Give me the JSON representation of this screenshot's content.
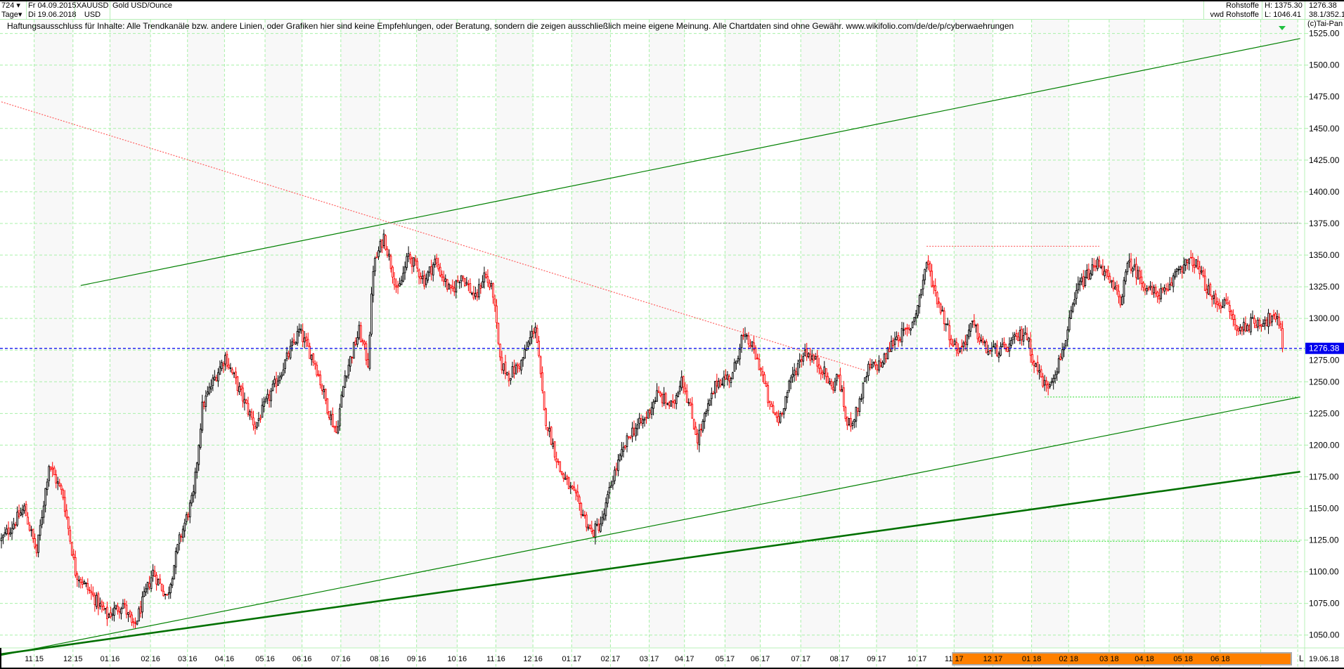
{
  "header": {
    "bar_count": "724",
    "interval": "Tage",
    "date_from": "Fr 04.09.2015",
    "date_to": "Di 19.06.2018",
    "symbol": "XAUUSD",
    "currency": "USD",
    "instrument_name": "Gold USD/Ounce",
    "category": "Rohstoffe",
    "source": "vwd Rohstoffe",
    "high": "H: 1375.30",
    "low": "L: 1046.41",
    "last_price": "1276.38",
    "change": "38.1/352.1",
    "copyright": "(c)Tai-Pan"
  },
  "disclaimer": "Haftungsausschluss für Inhalte: Alle Trendkanäle bzw. andere Linien, oder Grafiken hier sind keine Empfehlungen, oder Beratung, sondern die zeigen ausschließlich meine eigene Meinung. Alle Chartdaten sind ohne Gewähr.  www.wikifolio.com/de/de/p/cyberwaehrungen",
  "colors": {
    "up": "#000000",
    "down": "#ff0000",
    "grid": "#a8f0a8",
    "channel": "#008000",
    "last_price": "#0000ee",
    "resistance": "#ff6060",
    "axis_highlight": "#ff8000"
  },
  "chart_data": {
    "type": "candlestick",
    "title": "Gold USD/Ounce",
    "interval": "daily",
    "ylim": [
      1040,
      1530
    ],
    "yticks": [
      1050,
      1075,
      1100,
      1125,
      1150,
      1175,
      1200,
      1225,
      1250,
      1275,
      1300,
      1325,
      1350,
      1375,
      1400,
      1425,
      1450,
      1475,
      1500,
      1525
    ],
    "ytick_labels": [
      "1050.00",
      "1075.00",
      "1100.00",
      "1125.00",
      "1150.00",
      "1175.00",
      "1200.00",
      "1225.00",
      "1250.00",
      "1275.00",
      "1300.00",
      "1325.00",
      "1350.00",
      "1375.00",
      "1400.00",
      "1425.00",
      "1450.00",
      "1475.00",
      "1500.00",
      "1525.00"
    ],
    "xtick_labels": [
      "11 15",
      "12 15",
      "01 16",
      "02 16",
      "03 16",
      "04 16",
      "05 16",
      "06 16",
      "07 16",
      "08 16",
      "09 16",
      "10 16",
      "11 16",
      "12 16",
      "01 17",
      "02 17",
      "03 17",
      "04 17",
      "05 17",
      "06 17",
      "07 17",
      "08 17",
      "09 17",
      "10 17",
      "11 17",
      "12 17",
      "01 18",
      "02 18",
      "03 18",
      "04 18",
      "05 18",
      "06 18"
    ],
    "x_end_label": "19.06.18",
    "x_scale_marker": "L",
    "grid": true,
    "approx_close": [
      [
        "2015-09-04",
        1125
      ],
      [
        "2015-09-23",
        1150
      ],
      [
        "2015-10-02",
        1115
      ],
      [
        "2015-10-13",
        1185
      ],
      [
        "2015-10-23",
        1160
      ],
      [
        "2015-11-03",
        1100
      ],
      [
        "2015-11-27",
        1065
      ],
      [
        "2015-12-10",
        1075
      ],
      [
        "2015-12-18",
        1055
      ],
      [
        "2016-01-04",
        1100
      ],
      [
        "2016-01-14",
        1080
      ],
      [
        "2016-01-25",
        1125
      ],
      [
        "2016-02-04",
        1160
      ],
      [
        "2016-02-11",
        1230
      ],
      [
        "2016-02-19",
        1250
      ],
      [
        "2016-03-01",
        1270
      ],
      [
        "2016-03-14",
        1240
      ],
      [
        "2016-03-24",
        1215
      ],
      [
        "2016-04-11",
        1250
      ],
      [
        "2016-04-28",
        1290
      ],
      [
        "2016-05-11",
        1265
      ],
      [
        "2016-05-20",
        1230
      ],
      [
        "2016-05-27",
        1210
      ],
      [
        "2016-06-03",
        1255
      ],
      [
        "2016-06-15",
        1290
      ],
      [
        "2016-06-22",
        1265
      ],
      [
        "2016-06-27",
        1340
      ],
      [
        "2016-07-05",
        1365
      ],
      [
        "2016-07-15",
        1320
      ],
      [
        "2016-07-25",
        1350
      ],
      [
        "2016-08-05",
        1330
      ],
      [
        "2016-08-15",
        1345
      ],
      [
        "2016-08-26",
        1320
      ],
      [
        "2016-09-05",
        1335
      ],
      [
        "2016-09-15",
        1315
      ],
      [
        "2016-09-22",
        1335
      ],
      [
        "2016-09-29",
        1320
      ],
      [
        "2016-10-05",
        1265
      ],
      [
        "2016-10-12",
        1255
      ],
      [
        "2016-10-21",
        1265
      ],
      [
        "2016-11-02",
        1295
      ],
      [
        "2016-11-09",
        1225
      ],
      [
        "2016-11-22",
        1180
      ],
      [
        "2016-12-06",
        1155
      ],
      [
        "2016-12-16",
        1130
      ],
      [
        "2016-12-26",
        1140
      ],
      [
        "2017-01-03",
        1175
      ],
      [
        "2017-01-17",
        1210
      ],
      [
        "2017-01-27",
        1220
      ],
      [
        "2017-02-07",
        1240
      ],
      [
        "2017-02-20",
        1230
      ],
      [
        "2017-02-27",
        1255
      ],
      [
        "2017-03-10",
        1205
      ],
      [
        "2017-03-27",
        1250
      ],
      [
        "2017-04-07",
        1255
      ],
      [
        "2017-04-14",
        1285
      ],
      [
        "2017-04-21",
        1280
      ],
      [
        "2017-05-01",
        1260
      ],
      [
        "2017-05-08",
        1230
      ],
      [
        "2017-05-15",
        1220
      ],
      [
        "2017-05-25",
        1255
      ],
      [
        "2017-06-05",
        1275
      ],
      [
        "2017-06-19",
        1260
      ],
      [
        "2017-06-26",
        1245
      ],
      [
        "2017-06-30",
        1255
      ],
      [
        "2017-07-07",
        1215
      ],
      [
        "2017-07-14",
        1225
      ],
      [
        "2017-07-25",
        1260
      ],
      [
        "2017-08-04",
        1265
      ],
      [
        "2017-08-15",
        1285
      ],
      [
        "2017-08-25",
        1290
      ],
      [
        "2017-09-01",
        1310
      ],
      [
        "2017-09-08",
        1345
      ],
      [
        "2017-09-15",
        1320
      ],
      [
        "2017-09-22",
        1300
      ],
      [
        "2017-09-29",
        1280
      ],
      [
        "2017-10-05",
        1275
      ],
      [
        "2017-10-16",
        1295
      ],
      [
        "2017-10-26",
        1275
      ],
      [
        "2017-11-09",
        1275
      ],
      [
        "2017-11-27",
        1290
      ],
      [
        "2017-12-04",
        1265
      ],
      [
        "2017-12-13",
        1245
      ],
      [
        "2017-12-22",
        1265
      ],
      [
        "2017-12-29",
        1290
      ],
      [
        "2018-01-08",
        1325
      ],
      [
        "2018-01-24",
        1345
      ],
      [
        "2018-01-31",
        1330
      ],
      [
        "2018-02-09",
        1315
      ],
      [
        "2018-02-16",
        1345
      ],
      [
        "2018-02-27",
        1330
      ],
      [
        "2018-03-07",
        1320
      ],
      [
        "2018-03-20",
        1320
      ],
      [
        "2018-03-27",
        1340
      ],
      [
        "2018-04-10",
        1345
      ],
      [
        "2018-04-24",
        1315
      ],
      [
        "2018-05-07",
        1310
      ],
      [
        "2018-05-14",
        1290
      ],
      [
        "2018-05-21",
        1295
      ],
      [
        "2018-06-11",
        1300
      ],
      [
        "2018-06-18",
        1295
      ],
      [
        "2018-06-19",
        1276.38
      ]
    ],
    "annotations": [
      {
        "type": "trendline",
        "style": "solid",
        "color": "#008000",
        "weight": "thin",
        "from": [
          "2015-11-06",
          1326
        ],
        "to": [
          "2018-07-03",
          1521
        ]
      },
      {
        "type": "trendline",
        "style": "solid",
        "color": "#008000",
        "weight": "thin",
        "from": [
          "2015-09-04",
          1034
        ],
        "to": [
          "2018-07-03",
          1238
        ]
      },
      {
        "type": "trendline",
        "style": "solid",
        "color": "#007000",
        "weight": "thick",
        "from": [
          "2015-09-04",
          1035
        ],
        "to": [
          "2018-07-03",
          1179
        ]
      },
      {
        "type": "trendline",
        "style": "dotted",
        "color": "#ff6060",
        "weight": "thin",
        "from": [
          "2015-09-04",
          1471
        ],
        "to": [
          "2017-07-21",
          1259
        ]
      },
      {
        "type": "horizontal",
        "style": "dotted",
        "color": "#999999",
        "price": 1375.3,
        "from": "2016-07-06",
        "to": "2018-07-03"
      },
      {
        "type": "horizontal",
        "style": "dotted",
        "color": "#ff6060",
        "price": 1357,
        "from": "2017-09-08",
        "to": "2018-01-24"
      },
      {
        "type": "horizontal",
        "style": "dotted",
        "color": "#40e040",
        "price": 1238,
        "from": "2017-12-12",
        "to": "2018-07-03"
      },
      {
        "type": "horizontal",
        "style": "dotted",
        "color": "#40e040",
        "price": 1124,
        "from": "2016-12-15",
        "to": "2018-07-03"
      },
      {
        "type": "horizontal",
        "style": "dashed",
        "color": "#0000ee",
        "price": 1276.38,
        "label": "1276.38"
      }
    ],
    "axis_highlight": {
      "from": "2017-10-01",
      "to": "2018-06-19",
      "color": "#ff8000"
    }
  }
}
